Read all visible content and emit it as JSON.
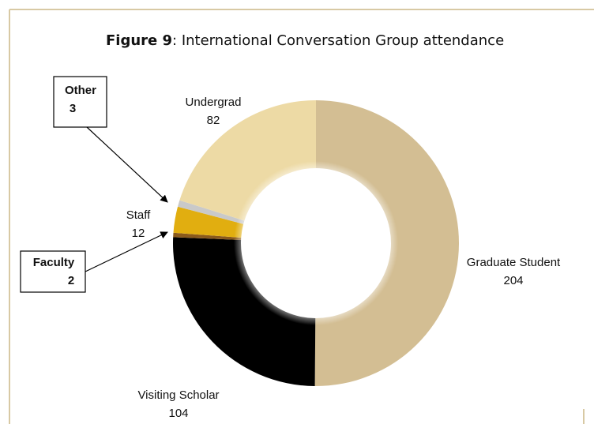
{
  "chart_data": {
    "type": "donut",
    "figure_label": "Figure 9",
    "title": ": International Conversation Group attendance",
    "categories": [
      "Graduate Student",
      "Visiting Scholar",
      "Faculty",
      "Staff",
      "Other",
      "Undergrad"
    ],
    "values": [
      204,
      104,
      2,
      12,
      3,
      82
    ],
    "colors": [
      "#d3be93",
      "#000000",
      "#8a5a1c",
      "#e1ae10",
      "#c9c9c9",
      "#eddaa5"
    ]
  }
}
